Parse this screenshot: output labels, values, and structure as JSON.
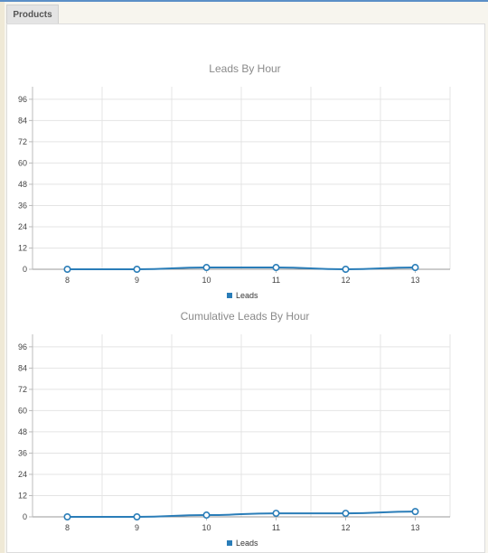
{
  "tab": {
    "label": "Products"
  },
  "chart_data": [
    {
      "type": "line",
      "title": "Leads By Hour",
      "categories": [
        "8",
        "9",
        "10",
        "11",
        "12",
        "13"
      ],
      "series": [
        {
          "name": "Leads",
          "values": [
            0,
            0,
            1,
            1,
            0,
            1
          ]
        }
      ],
      "ylim": [
        0,
        100
      ],
      "yticks": [
        0,
        12,
        24,
        36,
        48,
        60,
        72,
        84,
        96
      ],
      "grid": true,
      "legend_position": "bottom",
      "color": "#2a7db8"
    },
    {
      "type": "line",
      "title": "Cumulative Leads By Hour",
      "categories": [
        "8",
        "9",
        "10",
        "11",
        "12",
        "13"
      ],
      "series": [
        {
          "name": "Leads",
          "values": [
            0,
            0,
            1,
            2,
            2,
            3
          ]
        }
      ],
      "ylim": [
        0,
        100
      ],
      "yticks": [
        0,
        12,
        24,
        36,
        48,
        60,
        72,
        84,
        96
      ],
      "grid": true,
      "legend_position": "bottom",
      "color": "#2a7db8"
    }
  ]
}
